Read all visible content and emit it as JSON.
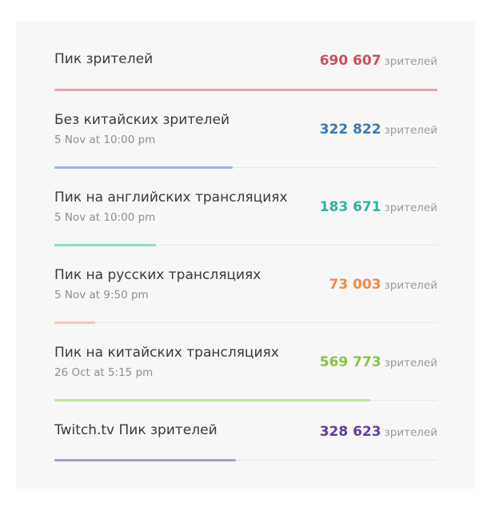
{
  "rows": [
    {
      "label": "Пик зрителей",
      "sub": "",
      "value": "690 607",
      "unit": "зрителей",
      "color": "#c9505e",
      "bar_color": "#e3a4aa",
      "fraction": 1.0
    },
    {
      "label": "Без китайских зрителей",
      "sub": "5 Nov at 10:00 pm",
      "value": "322 822",
      "unit": "зрителей",
      "color": "#3a78b5",
      "bar_color": "#9fb3dc",
      "fraction": 0.467
    },
    {
      "label": "Пик на английских трансляциях",
      "sub": "5 Nov at 10:00 pm",
      "value": "183 671",
      "unit": "зрителей",
      "color": "#2fb3a0",
      "bar_color": "#8fd8cc",
      "fraction": 0.266
    },
    {
      "label": "Пик на русских трансляциях",
      "sub": "5 Nov at 9:50 pm",
      "value": "73 003",
      "unit": "зрителей",
      "color": "#f08a4b",
      "bar_color": "#f4c6b4",
      "fraction": 0.106
    },
    {
      "label": "Пик на китайских трансляциях",
      "sub": "26 Oct at 5:15 pm",
      "value": "569 773",
      "unit": "зрителей",
      "color": "#86c442",
      "bar_color": "#bfe39c",
      "fraction": 0.825
    },
    {
      "label": "Twitch.tv Пик зрителей",
      "sub": "",
      "value": "328 623",
      "unit": "зрителей",
      "color": "#5e3f9c",
      "bar_color": "#ac9ccf",
      "fraction": 0.476
    }
  ]
}
